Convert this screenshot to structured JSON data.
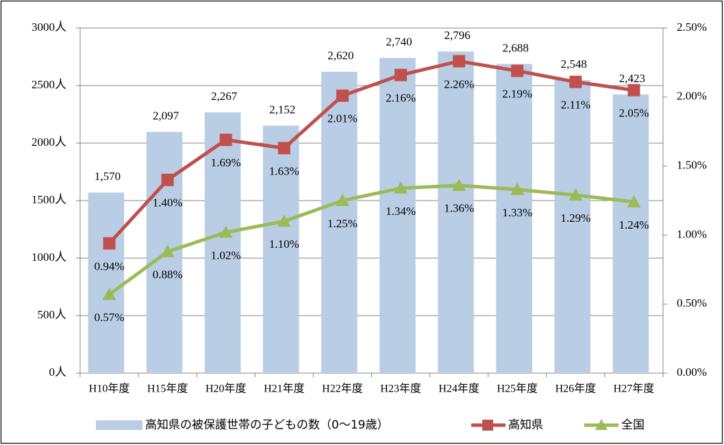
{
  "chart_data": {
    "type": "bar",
    "categories": [
      "H10年度",
      "H15年度",
      "H20年度",
      "H21年度",
      "H22年度",
      "H23年度",
      "H24年度",
      "H25年度",
      "H26年度",
      "H27年度"
    ],
    "series": [
      {
        "name": "高知県の被保護世帯の子どもの数（0〜19歳）",
        "type": "bar",
        "color": "#b9cde5",
        "values": [
          1570,
          2097,
          2267,
          2152,
          2620,
          2740,
          2796,
          2688,
          2548,
          2423
        ],
        "value_labels": [
          "1,570",
          "2,097",
          "2,267",
          "2,152",
          "2,620",
          "2,740",
          "2,796",
          "2,688",
          "2,548",
          "2,423"
        ]
      },
      {
        "name": "高知県",
        "type": "line",
        "axis": "y2",
        "marker": "square",
        "color": "#c0504d",
        "values": [
          0.94,
          1.4,
          1.69,
          1.63,
          2.01,
          2.16,
          2.26,
          2.19,
          2.11,
          2.05
        ],
        "value_labels": [
          "0.94%",
          "1.40%",
          "1.69%",
          "1.63%",
          "2.01%",
          "2.16%",
          "2.26%",
          "2.19%",
          "2.11%",
          "2.05%"
        ]
      },
      {
        "name": "全国",
        "type": "line",
        "axis": "y2",
        "marker": "triangle",
        "color": "#9bbb59",
        "values": [
          0.57,
          0.88,
          1.02,
          1.1,
          1.25,
          1.34,
          1.36,
          1.33,
          1.29,
          1.24
        ],
        "value_labels": [
          "0.57%",
          "0.88%",
          "1.02%",
          "1.10%",
          "1.25%",
          "1.34%",
          "1.36%",
          "1.33%",
          "1.29%",
          "1.24%"
        ]
      }
    ],
    "ylim": [
      0,
      3000
    ],
    "yticks": [
      {
        "value": 0,
        "label": "0人"
      },
      {
        "value": 500,
        "label": "500人"
      },
      {
        "value": 1000,
        "label": "1000人"
      },
      {
        "value": 1500,
        "label": "1500人"
      },
      {
        "value": 2000,
        "label": "2000人"
      },
      {
        "value": 2500,
        "label": "2500人"
      },
      {
        "value": 3000,
        "label": "3000人"
      }
    ],
    "y2lim": [
      0,
      2.5
    ],
    "y2ticks": [
      {
        "value": 0,
        "label": "0.00%"
      },
      {
        "value": 0.5,
        "label": "0.50%"
      },
      {
        "value": 1,
        "label": "1.00%"
      },
      {
        "value": 1.5,
        "label": "1.50%"
      },
      {
        "value": 2,
        "label": "2.00%"
      },
      {
        "value": 2.5,
        "label": "2.50%"
      }
    ],
    "grid": true,
    "legend": "bottom"
  }
}
